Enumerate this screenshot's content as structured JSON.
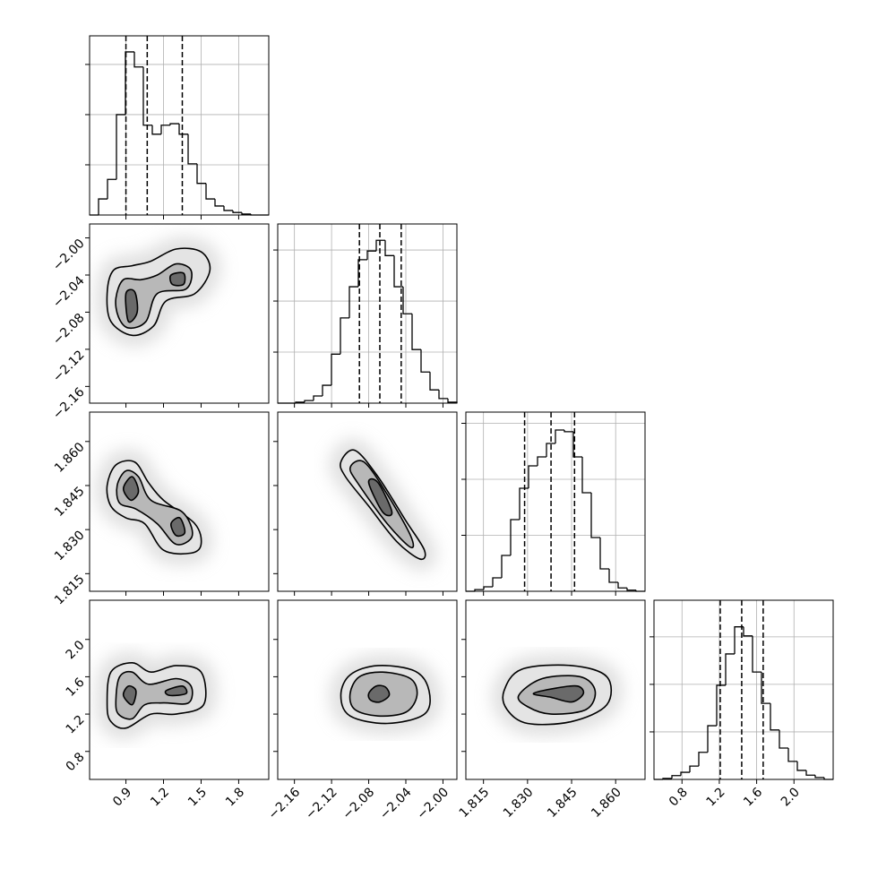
{
  "chart_data": {
    "type": "corner",
    "color": "#000000",
    "grid": true,
    "parameters": [
      {
        "lim": [
          0.61,
          2.04
        ],
        "ticks": [
          0.9,
          1.2,
          1.5,
          1.8
        ],
        "quantiles": [
          0.9,
          1.07,
          1.35
        ],
        "hist": {
          "bins": [
            0.61,
            0.6815,
            0.753,
            0.8245,
            0.896,
            0.9675,
            1.039,
            1.1105,
            1.182,
            1.2535,
            1.325,
            1.3965,
            1.468,
            1.5395,
            1.611,
            1.6825,
            1.754,
            1.8255,
            1.897,
            1.9685,
            2.04
          ],
          "values": [
            0,
            0.32,
            0.71,
            2.0,
            3.25,
            2.95,
            1.79,
            1.61,
            1.79,
            1.82,
            1.61,
            1.02,
            0.63,
            0.32,
            0.18,
            0.09,
            0.05,
            0.02,
            0,
            0
          ],
          "ylim": [
            0,
            3.57
          ],
          "yticks": [
            1,
            2,
            3
          ]
        }
      },
      {
        "lim": [
          -2.178,
          -1.985
        ],
        "ticks": [
          {
            "value": -2.16,
            "label": "−2.16"
          },
          {
            "value": -2.12,
            "label": "−2.12"
          },
          {
            "value": -2.08,
            "label": "−2.08"
          },
          {
            "value": -2.04,
            "label": "−2.04"
          },
          {
            "value": -2.0,
            "label": "−2.00"
          }
        ],
        "quantiles": [
          -2.09,
          -2.068,
          -2.045
        ],
        "hist": {
          "bins": [
            -2.178,
            -2.16835,
            -2.1587,
            -2.14905,
            -2.1394,
            -2.12975,
            -2.1201,
            -2.11045,
            -2.1008,
            -2.09115,
            -2.0815,
            -2.07185,
            -2.0622,
            -2.05255,
            -2.0429,
            -2.03325,
            -2.0236,
            -2.01395,
            -2.0043,
            -1.99465,
            -1.985
          ],
          "values": [
            0,
            0,
            0.02,
            0.05,
            0.14,
            0.35,
            0.96,
            1.67,
            2.28,
            2.81,
            2.98,
            3.19,
            2.89,
            2.28,
            1.75,
            1.05,
            0.61,
            0.26,
            0.09,
            0.02
          ],
          "ylim": [
            0,
            3.51
          ],
          "yticks": [
            1,
            2,
            3
          ]
        }
      },
      {
        "lim": [
          1.809,
          1.87
        ],
        "ticks": [
          1.815,
          {
            "value": 1.83,
            "label": "1.830"
          },
          1.845,
          {
            "value": 1.86,
            "label": "1.860"
          }
        ],
        "quantiles": [
          1.829,
          1.838,
          1.846
        ],
        "hist": {
          "bins": [
            1.809,
            1.81205,
            1.8151,
            1.81815,
            1.8212,
            1.82425,
            1.8273,
            1.83035,
            1.8334,
            1.83645,
            1.8395,
            1.84255,
            1.8456,
            1.84865,
            1.8517,
            1.85475,
            1.8578,
            1.86085,
            1.8639,
            1.86695,
            1.87
          ],
          "values": [
            0,
            0.03,
            0.08,
            0.24,
            0.64,
            1.28,
            1.84,
            2.24,
            2.4,
            2.64,
            2.88,
            2.85,
            2.4,
            1.76,
            0.96,
            0.4,
            0.16,
            0.06,
            0.02,
            0
          ],
          "ylim": [
            0,
            3.2
          ],
          "yticks": [
            1,
            2,
            3
          ]
        }
      },
      {
        "lim": [
          0.5,
          2.42
        ],
        "ticks": [
          0.8,
          1.2,
          1.6,
          {
            "value": 2.0,
            "label": "2.0"
          }
        ],
        "quantiles": [
          1.21,
          1.44,
          1.67
        ],
        "hist": {
          "bins": [
            0.5,
            0.596,
            0.692,
            0.788,
            0.884,
            0.98,
            1.076,
            1.172,
            1.268,
            1.364,
            1.46,
            1.556,
            1.652,
            1.748,
            1.844,
            1.94,
            2.036,
            2.132,
            2.228,
            2.324,
            2.42
          ],
          "values": [
            0,
            0.02,
            0.08,
            0.15,
            0.28,
            0.57,
            1.13,
            1.98,
            2.64,
            3.21,
            3.02,
            2.26,
            1.6,
            1.04,
            0.66,
            0.38,
            0.19,
            0.09,
            0.04,
            0
          ],
          "ylim": [
            0,
            3.77
          ],
          "yticks": [
            1,
            2,
            3
          ]
        }
      }
    ],
    "panels": [
      {
        "x": 0,
        "y": 1,
        "contours": [
          [
            [
              0.75,
              -2.06
            ],
            [
              0.8,
              -2.035
            ],
            [
              0.95,
              -2.03
            ],
            [
              1.1,
              -2.025
            ],
            [
              1.3,
              -2.012
            ],
            [
              1.5,
              -2.015
            ],
            [
              1.57,
              -2.035
            ],
            [
              1.45,
              -2.06
            ],
            [
              1.22,
              -2.068
            ],
            [
              1.12,
              -2.095
            ],
            [
              0.95,
              -2.105
            ],
            [
              0.78,
              -2.09
            ]
          ],
          [
            [
              0.82,
              -2.065
            ],
            [
              0.88,
              -2.045
            ],
            [
              1.02,
              -2.045
            ],
            [
              1.15,
              -2.04
            ],
            [
              1.3,
              -2.028
            ],
            [
              1.42,
              -2.035
            ],
            [
              1.38,
              -2.055
            ],
            [
              1.15,
              -2.06
            ],
            [
              1.06,
              -2.09
            ],
            [
              0.92,
              -2.097
            ],
            [
              0.84,
              -2.085
            ]
          ],
          [
            [
              0.9,
              -2.06
            ],
            [
              0.97,
              -2.058
            ],
            [
              0.99,
              -2.08
            ],
            [
              0.92,
              -2.09
            ]
          ],
          [
            [
              1.26,
              -2.04
            ],
            [
              1.36,
              -2.038
            ],
            [
              1.36,
              -2.05
            ],
            [
              1.27,
              -2.05
            ]
          ]
        ]
      },
      {
        "x": 0,
        "y": 2,
        "contours": [
          [
            [
              0.75,
              1.845
            ],
            [
              0.82,
              1.852
            ],
            [
              0.97,
              1.853
            ],
            [
              1.08,
              1.846
            ],
            [
              1.2,
              1.84
            ],
            [
              1.45,
              1.832
            ],
            [
              1.5,
              1.825
            ],
            [
              1.42,
              1.822
            ],
            [
              1.2,
              1.823
            ],
            [
              1.05,
              1.832
            ],
            [
              0.9,
              1.834
            ],
            [
              0.78,
              1.838
            ]
          ],
          [
            [
              0.83,
              1.845
            ],
            [
              0.9,
              1.85
            ],
            [
              1.0,
              1.848
            ],
            [
              1.1,
              1.84
            ],
            [
              1.35,
              1.836
            ],
            [
              1.43,
              1.828
            ],
            [
              1.3,
              1.825
            ],
            [
              1.15,
              1.832
            ],
            [
              0.98,
              1.837
            ],
            [
              0.85,
              1.839
            ]
          ],
          [
            [
              0.88,
              1.844
            ],
            [
              0.95,
              1.848
            ],
            [
              1.0,
              1.843
            ],
            [
              0.94,
              1.84
            ]
          ],
          [
            [
              1.26,
              1.832
            ],
            [
              1.33,
              1.834
            ],
            [
              1.37,
              1.829
            ],
            [
              1.3,
              1.828
            ]
          ]
        ]
      },
      {
        "x": 1,
        "y": 2,
        "contours": [
          [
            [
              -2.11,
              1.853
            ],
            [
              -2.095,
              1.857
            ],
            [
              -2.07,
              1.848
            ],
            [
              -2.04,
              1.833
            ],
            [
              -2.02,
              1.823
            ],
            [
              -2.025,
              1.82
            ],
            [
              -2.05,
              1.826
            ],
            [
              -2.08,
              1.838
            ],
            [
              -2.105,
              1.848
            ]
          ],
          [
            [
              -2.1,
              1.851
            ],
            [
              -2.085,
              1.853
            ],
            [
              -2.06,
              1.842
            ],
            [
              -2.035,
              1.828
            ],
            [
              -2.035,
              1.824
            ],
            [
              -2.06,
              1.832
            ],
            [
              -2.09,
              1.845
            ]
          ],
          [
            [
              -2.08,
              1.846
            ],
            [
              -2.07,
              1.846
            ],
            [
              -2.055,
              1.836
            ],
            [
              -2.065,
              1.836
            ]
          ]
        ]
      },
      {
        "x": 0,
        "y": 3,
        "contours": [
          [
            [
              0.75,
              1.3
            ],
            [
              0.78,
              1.65
            ],
            [
              0.95,
              1.75
            ],
            [
              1.1,
              1.65
            ],
            [
              1.3,
              1.72
            ],
            [
              1.5,
              1.65
            ],
            [
              1.52,
              1.3
            ],
            [
              1.3,
              1.2
            ],
            [
              1.1,
              1.2
            ],
            [
              0.9,
              1.05
            ],
            [
              0.78,
              1.12
            ]
          ],
          [
            [
              0.82,
              1.35
            ],
            [
              0.85,
              1.6
            ],
            [
              0.95,
              1.65
            ],
            [
              1.08,
              1.52
            ],
            [
              1.3,
              1.58
            ],
            [
              1.42,
              1.5
            ],
            [
              1.4,
              1.32
            ],
            [
              1.2,
              1.32
            ],
            [
              1.05,
              1.3
            ],
            [
              0.95,
              1.15
            ],
            [
              0.84,
              1.2
            ]
          ],
          [
            [
              0.88,
              1.4
            ],
            [
              0.92,
              1.5
            ],
            [
              0.98,
              1.45
            ],
            [
              0.95,
              1.3
            ]
          ],
          [
            [
              1.22,
              1.45
            ],
            [
              1.35,
              1.5
            ],
            [
              1.38,
              1.42
            ],
            [
              1.25,
              1.4
            ]
          ]
        ]
      },
      {
        "x": 1,
        "y": 3,
        "contours": [
          [
            [
              -2.11,
              1.4
            ],
            [
              -2.1,
              1.62
            ],
            [
              -2.07,
              1.72
            ],
            [
              -2.03,
              1.66
            ],
            [
              -2.015,
              1.45
            ],
            [
              -2.02,
              1.2
            ],
            [
              -2.06,
              1.1
            ],
            [
              -2.1,
              1.18
            ]
          ],
          [
            [
              -2.1,
              1.42
            ],
            [
              -2.09,
              1.6
            ],
            [
              -2.065,
              1.65
            ],
            [
              -2.035,
              1.58
            ],
            [
              -2.028,
              1.4
            ],
            [
              -2.04,
              1.22
            ],
            [
              -2.07,
              1.18
            ],
            [
              -2.095,
              1.25
            ]
          ],
          [
            [
              -2.08,
              1.42
            ],
            [
              -2.072,
              1.5
            ],
            [
              -2.062,
              1.49
            ],
            [
              -2.058,
              1.4
            ],
            [
              -2.068,
              1.33
            ],
            [
              -2.078,
              1.35
            ]
          ]
        ]
      },
      {
        "x": 2,
        "y": 3,
        "contours": [
          [
            [
              1.822,
              1.45
            ],
            [
              1.828,
              1.68
            ],
            [
              1.845,
              1.72
            ],
            [
              1.857,
              1.6
            ],
            [
              1.857,
              1.3
            ],
            [
              1.845,
              1.12
            ],
            [
              1.83,
              1.1
            ],
            [
              1.823,
              1.25
            ]
          ],
          [
            [
              1.827,
              1.4
            ],
            [
              1.835,
              1.58
            ],
            [
              1.848,
              1.6
            ],
            [
              1.853,
              1.45
            ],
            [
              1.85,
              1.25
            ],
            [
              1.838,
              1.2
            ],
            [
              1.83,
              1.28
            ]
          ],
          [
            [
              1.832,
              1.42
            ],
            [
              1.84,
              1.48
            ],
            [
              1.847,
              1.5
            ],
            [
              1.849,
              1.42
            ],
            [
              1.845,
              1.33
            ],
            [
              1.838,
              1.38
            ]
          ]
        ]
      }
    ]
  }
}
